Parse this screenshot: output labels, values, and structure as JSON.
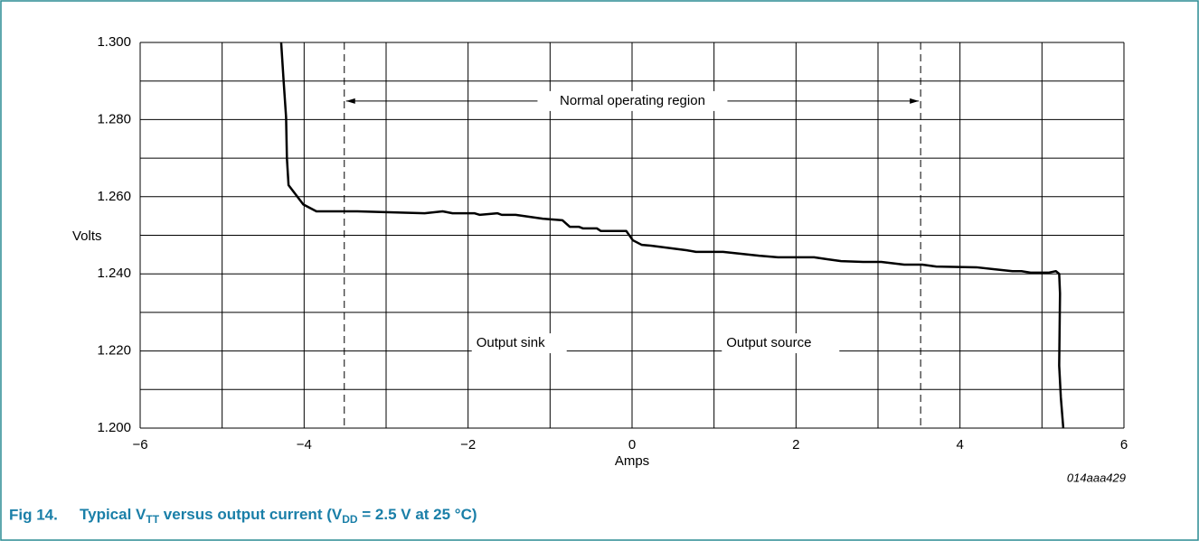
{
  "chart_data": {
    "type": "line",
    "y_label": "Volts",
    "x_label": "Amps",
    "figure_id": "014aaa429",
    "caption": {
      "label": "Fig 14.",
      "parts": [
        "Typical V",
        "TT",
        " versus output current (V",
        "DD",
        " = 2.5 V at 25 °C)"
      ],
      "subscript_parts": [
        1,
        3
      ]
    },
    "annotations": {
      "region_label": "Normal operating region",
      "region": [
        -3.51,
        3.52
      ],
      "sink_label": "Output sink",
      "sink_at": [
        -1.9,
        1.222
      ],
      "source_label": "Output source",
      "source_at": [
        1.15,
        1.222
      ]
    },
    "xlim": [
      -6,
      6
    ],
    "ylim": [
      1.2,
      1.3
    ],
    "xticks": [
      {
        "value": -6,
        "label": "−6"
      },
      {
        "value": -4,
        "label": "−4"
      },
      {
        "value": -2,
        "label": "−2"
      },
      0,
      2,
      4,
      6
    ],
    "yticks": [
      {
        "value": 1.2,
        "label": "1.200"
      },
      {
        "value": 1.22,
        "label": "1.220"
      },
      {
        "value": 1.24,
        "label": "1.240"
      },
      {
        "value": 1.26,
        "label": "1.260"
      },
      {
        "value": 1.28,
        "label": "1.280"
      },
      {
        "value": 1.3,
        "label": "1.300"
      }
    ],
    "xgrid": [
      -6,
      -5,
      -4,
      -3,
      -2,
      -1,
      0,
      1,
      2,
      3,
      4,
      5,
      6
    ],
    "ygrid": [
      1.2,
      1.21,
      1.22,
      1.23,
      1.24,
      1.25,
      1.26,
      1.27,
      1.28,
      1.29,
      1.3
    ],
    "grid": true,
    "series": [
      {
        "name": "VTT",
        "color": "#000000",
        "x": [
          -4.28,
          -4.25,
          -4.22,
          -4.21,
          -4.19,
          -4.01,
          -3.85,
          -3.35,
          -2.53,
          -2.31,
          -2.19,
          -1.92,
          -1.86,
          -1.64,
          -1.59,
          -1.42,
          -1.09,
          -0.85,
          -0.76,
          -0.65,
          -0.6,
          -0.43,
          -0.38,
          -0.07,
          0.01,
          0.12,
          0.23,
          0.67,
          0.78,
          1.11,
          1.33,
          1.55,
          1.78,
          2.22,
          2.38,
          2.55,
          2.82,
          3.04,
          3.32,
          3.54,
          3.71,
          4.2,
          4.42,
          4.64,
          4.75,
          4.86,
          5.08,
          5.17,
          5.21,
          5.22,
          5.21,
          5.23,
          5.26
        ],
        "values": [
          1.3,
          1.29,
          1.2806,
          1.27,
          1.263,
          1.258,
          1.2562,
          1.2562,
          1.2557,
          1.2562,
          1.2557,
          1.2557,
          1.2553,
          1.2557,
          1.2553,
          1.2553,
          1.2543,
          1.2539,
          1.2522,
          1.2522,
          1.2518,
          1.2518,
          1.2511,
          1.2511,
          1.2487,
          1.2475,
          1.2473,
          1.2461,
          1.2457,
          1.2457,
          1.2452,
          1.2447,
          1.2443,
          1.2443,
          1.2438,
          1.2433,
          1.2431,
          1.2431,
          1.2424,
          1.2424,
          1.2419,
          1.2417,
          1.2412,
          1.2407,
          1.2407,
          1.2403,
          1.2403,
          1.2407,
          1.24,
          1.2349,
          1.2162,
          1.208,
          1.2
        ]
      }
    ]
  }
}
